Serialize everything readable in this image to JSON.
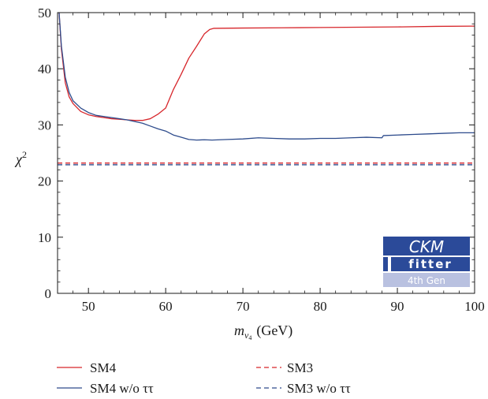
{
  "chart_data": {
    "type": "line",
    "xlabel": "m_ν4 (GeV)",
    "xlabel_main": "m",
    "xlabel_sub": "ν",
    "xlabel_subsub": "4",
    "xlabel_unit": "(GeV)",
    "ylabel": "χ²",
    "ylabel_main": "χ",
    "ylabel_sup": "2",
    "xlim": [
      46,
      100
    ],
    "ylim": [
      0,
      50
    ],
    "xticks": [
      50,
      60,
      70,
      80,
      90,
      100
    ],
    "yticks": [
      0,
      10,
      20,
      30,
      40,
      50
    ],
    "grid": false,
    "legend_position": "bottom",
    "series": [
      {
        "name": "SM4",
        "color": "#d7262b",
        "style": "solid",
        "x": [
          46.2,
          46.5,
          47,
          47.5,
          48,
          49,
          50,
          51,
          52,
          53,
          54,
          55,
          56,
          57,
          58,
          59,
          60,
          61,
          62,
          63,
          64,
          65,
          65.7,
          66.2,
          70,
          75,
          80,
          85,
          90,
          95,
          100
        ],
        "y": [
          50,
          43.5,
          37.5,
          35,
          33.8,
          32.4,
          31.8,
          31.5,
          31.3,
          31.1,
          31,
          30.9,
          30.8,
          30.8,
          31.1,
          31.9,
          33,
          36.3,
          39,
          41.9,
          44,
          46.2,
          47,
          47.2,
          47.25,
          47.3,
          47.35,
          47.4,
          47.45,
          47.55,
          47.6
        ]
      },
      {
        "name": "SM4 w/o ττ",
        "color": "#2d4b8c",
        "style": "solid",
        "x": [
          46.2,
          46.5,
          47,
          47.5,
          48,
          49,
          50,
          51,
          52,
          53,
          54,
          55,
          56,
          57,
          58,
          59,
          60,
          61,
          62,
          63,
          64,
          65,
          66,
          68,
          70,
          72,
          74,
          76,
          78,
          80,
          82,
          84,
          86,
          88,
          88.2,
          90,
          92,
          94,
          96,
          98,
          100
        ],
        "y": [
          50,
          44,
          38.5,
          35.8,
          34.3,
          33,
          32.2,
          31.7,
          31.5,
          31.3,
          31.1,
          30.9,
          30.6,
          30.3,
          29.8,
          29.3,
          28.9,
          28.2,
          27.8,
          27.4,
          27.3,
          27.35,
          27.3,
          27.4,
          27.5,
          27.7,
          27.6,
          27.5,
          27.5,
          27.6,
          27.6,
          27.7,
          27.8,
          27.7,
          28.1,
          28.2,
          28.3,
          28.4,
          28.5,
          28.6,
          28.6
        ]
      },
      {
        "name": "SM3",
        "color": "#d7262b",
        "style": "dashed",
        "x": [
          46,
          100
        ],
        "y": [
          23.2,
          23.2
        ]
      },
      {
        "name": "SM3 w/o ττ",
        "color": "#2d4b8c",
        "style": "dashed",
        "x": [
          46,
          100
        ],
        "y": [
          22.9,
          22.9
        ]
      }
    ]
  },
  "logo": {
    "line1": "CKM",
    "line2": "fitter",
    "line3": "4th Gen"
  }
}
